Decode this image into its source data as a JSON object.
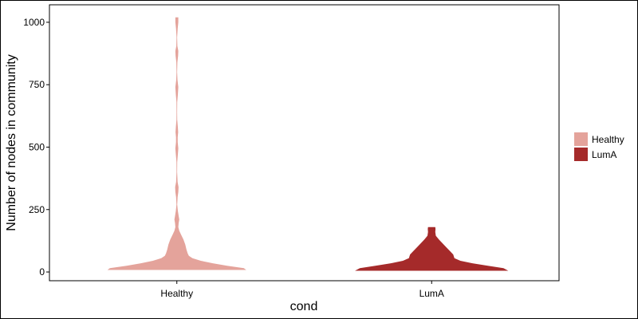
{
  "chart_data": {
    "type": "violin",
    "title": "",
    "xlabel": "cond",
    "ylabel": "Number of nodes in community",
    "ylim": [
      -35,
      1070
    ],
    "yticks": [
      0,
      250,
      500,
      750,
      1000
    ],
    "grid": false,
    "legend_position": "right",
    "categories": [
      "Healthy",
      "LumA"
    ],
    "series": [
      {
        "name": "Healthy",
        "color": "#e4a39b",
        "min": 8,
        "max": 1020,
        "density": [
          [
            8,
            0.58
          ],
          [
            15,
            0.56
          ],
          [
            25,
            0.42
          ],
          [
            35,
            0.3
          ],
          [
            45,
            0.2
          ],
          [
            55,
            0.13
          ],
          [
            65,
            0.1
          ],
          [
            75,
            0.09
          ],
          [
            90,
            0.08
          ],
          [
            110,
            0.07
          ],
          [
            130,
            0.055
          ],
          [
            150,
            0.035
          ],
          [
            165,
            0.02
          ],
          [
            180,
            0.012
          ],
          [
            195,
            0.015
          ],
          [
            210,
            0.02
          ],
          [
            225,
            0.015
          ],
          [
            245,
            0.008
          ],
          [
            270,
            0.003
          ],
          [
            300,
            0.006
          ],
          [
            320,
            0.012
          ],
          [
            340,
            0.014
          ],
          [
            360,
            0.006
          ],
          [
            400,
            0.002
          ],
          [
            440,
            0.003
          ],
          [
            470,
            0.008
          ],
          [
            495,
            0.012
          ],
          [
            520,
            0.007
          ],
          [
            540,
            0.007
          ],
          [
            560,
            0.011
          ],
          [
            580,
            0.008
          ],
          [
            610,
            0.003
          ],
          [
            640,
            0.002
          ],
          [
            680,
            0.003
          ],
          [
            710,
            0.008
          ],
          [
            740,
            0.012
          ],
          [
            770,
            0.005
          ],
          [
            800,
            0.002
          ],
          [
            840,
            0.004
          ],
          [
            865,
            0.01
          ],
          [
            885,
            0.012
          ],
          [
            905,
            0.004
          ],
          [
            940,
            0.002
          ],
          [
            975,
            0.007
          ],
          [
            1000,
            0.012
          ],
          [
            1020,
            0.012
          ]
        ]
      },
      {
        "name": "LumA",
        "color": "#a52a2a",
        "min": 5,
        "max": 180,
        "density": [
          [
            5,
            0.64
          ],
          [
            15,
            0.6
          ],
          [
            25,
            0.47
          ],
          [
            35,
            0.34
          ],
          [
            45,
            0.24
          ],
          [
            55,
            0.19
          ],
          [
            70,
            0.18
          ],
          [
            85,
            0.15
          ],
          [
            100,
            0.12
          ],
          [
            115,
            0.09
          ],
          [
            130,
            0.06
          ],
          [
            145,
            0.035
          ],
          [
            160,
            0.03
          ],
          [
            172,
            0.032
          ],
          [
            180,
            0.03
          ]
        ]
      }
    ],
    "legend": {
      "entries": [
        "Healthy",
        "LumA"
      ]
    }
  }
}
